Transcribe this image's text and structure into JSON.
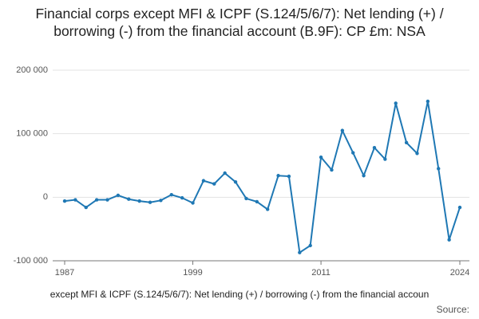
{
  "chart_data": {
    "type": "line",
    "title": "Financial corps except MFI & ICPF (S.124/5/6/7): Net lending (+) / borrowing (-) from the financial account (B.9F): CP £m: NSA",
    "x_label": "except MFI & ICPF (S.124/5/6/7): Net lending (+) / borrowing (-) from the financial accoun",
    "source": "Source:",
    "x": [
      1987,
      1988,
      1989,
      1990,
      1991,
      1992,
      1993,
      1994,
      1995,
      1996,
      1997,
      1998,
      1999,
      2000,
      2001,
      2002,
      2003,
      2004,
      2005,
      2006,
      2007,
      2008,
      2009,
      2010,
      2011,
      2012,
      2013,
      2014,
      2015,
      2016,
      2017,
      2018,
      2019,
      2020,
      2021,
      2022,
      2023,
      2024
    ],
    "values": [
      -6000,
      -4000,
      -16000,
      -4000,
      -4000,
      3000,
      -3000,
      -6000,
      -8000,
      -5000,
      4000,
      -1000,
      -9000,
      26000,
      21000,
      38000,
      24000,
      -2000,
      -7000,
      -19000,
      34000,
      33000,
      -87000,
      -76000,
      63000,
      43000,
      105000,
      70000,
      34000,
      78000,
      60000,
      148000,
      86000,
      69000,
      151000,
      45000,
      -67000,
      -16000
    ],
    "color": "#1f78b4",
    "xlim": [
      1987,
      2024
    ],
    "xticks": [
      1987,
      1999,
      2011,
      2024
    ],
    "ylim": [
      -100000,
      200000
    ],
    "yticks": [
      {
        "value": -100000,
        "label": "-100 000"
      },
      0,
      {
        "value": 100000,
        "label": "100 000"
      },
      {
        "value": 200000,
        "label": "200 000"
      }
    ],
    "grid": true
  }
}
